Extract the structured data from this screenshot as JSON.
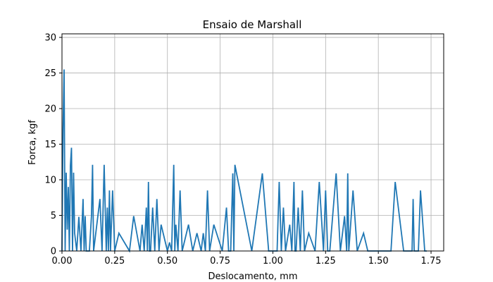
{
  "chart_data": {
    "type": "line",
    "title": "Ensaio de Marshall",
    "xlabel": "Deslocamento, mm",
    "ylabel": "Forca, kgf",
    "xlim": [
      0.0,
      1.81
    ],
    "ylim": [
      0,
      30.5
    ],
    "xticks": [
      "0.00",
      "0.25",
      "0.50",
      "0.75",
      "1.00",
      "1.25",
      "1.50",
      "1.75"
    ],
    "yticks": [
      "0",
      "5",
      "10",
      "15",
      "20",
      "25",
      "30"
    ],
    "grid": true,
    "series_color": "#1f77b4",
    "x": [
      0.0,
      0.005,
      0.01,
      0.015,
      0.02,
      0.025,
      0.03,
      0.035,
      0.04,
      0.045,
      0.05,
      0.055,
      0.06,
      0.07,
      0.08,
      0.09,
      0.1,
      0.105,
      0.11,
      0.115,
      0.12,
      0.13,
      0.14,
      0.145,
      0.15,
      0.18,
      0.19,
      0.2,
      0.21,
      0.215,
      0.22,
      0.225,
      0.23,
      0.24,
      0.25,
      0.27,
      0.32,
      0.34,
      0.37,
      0.38,
      0.39,
      0.4,
      0.405,
      0.41,
      0.415,
      0.42,
      0.43,
      0.44,
      0.45,
      0.46,
      0.47,
      0.5,
      0.51,
      0.52,
      0.53,
      0.535,
      0.54,
      0.55,
      0.56,
      0.57,
      0.6,
      0.62,
      0.64,
      0.66,
      0.67,
      0.68,
      0.69,
      0.7,
      0.72,
      0.76,
      0.78,
      0.79,
      0.8,
      0.81,
      0.815,
      0.82,
      0.9,
      0.95,
      0.98,
      1.02,
      1.03,
      1.04,
      1.05,
      1.06,
      1.08,
      1.09,
      1.1,
      1.105,
      1.11,
      1.12,
      1.13,
      1.14,
      1.15,
      1.17,
      1.2,
      1.22,
      1.24,
      1.25,
      1.26,
      1.27,
      1.3,
      1.32,
      1.34,
      1.35,
      1.355,
      1.36,
      1.38,
      1.4,
      1.43,
      1.45,
      1.55,
      1.56,
      1.58,
      1.62,
      1.66,
      1.665,
      1.67,
      1.69,
      1.7,
      1.72,
      1.73
    ],
    "y": [
      0,
      17.0,
      25.5,
      0,
      11.0,
      3.0,
      9.0,
      0,
      12.0,
      14.5,
      0,
      11.0,
      2.5,
      0,
      4.8,
      0,
      7.3,
      0,
      4.9,
      0,
      0,
      0,
      5.0,
      12.1,
      0,
      7.3,
      0,
      12.1,
      0,
      6.1,
      0,
      8.5,
      0,
      8.5,
      0,
      2.5,
      0,
      4.9,
      0,
      3.7,
      0,
      6.1,
      0,
      9.7,
      0,
      0,
      6.1,
      0,
      7.3,
      0,
      3.7,
      0,
      1.2,
      0,
      12.1,
      0,
      3.7,
      0,
      8.5,
      0,
      3.7,
      0,
      2.5,
      0,
      2.5,
      0,
      8.5,
      0,
      3.7,
      0,
      6.1,
      0,
      0,
      10.9,
      0,
      12.1,
      0,
      10.9,
      0,
      0,
      9.7,
      0,
      6.1,
      0,
      3.7,
      0,
      9.7,
      0,
      0,
      6.1,
      0,
      8.5,
      0,
      2.5,
      0,
      9.7,
      0,
      8.5,
      0,
      0,
      10.9,
      0,
      4.9,
      0,
      10.9,
      0,
      8.5,
      0,
      2.5,
      0,
      0,
      0,
      9.7,
      0,
      0,
      7.3,
      0,
      0,
      8.5,
      0,
      0
    ]
  }
}
